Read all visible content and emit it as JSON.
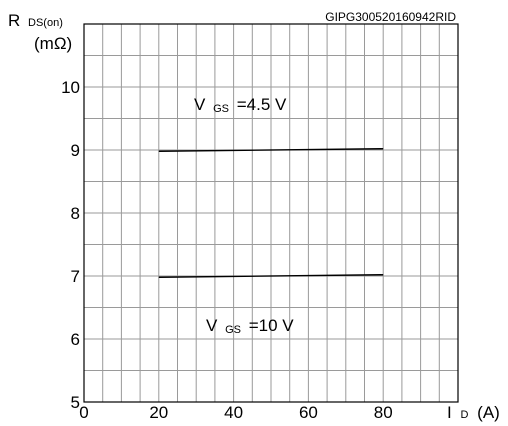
{
  "chart_data": {
    "type": "line",
    "reference_id": "GIPG300520160942RID",
    "y_label_main": "R",
    "y_label_sub": "DS(on)",
    "y_unit": "(mΩ)",
    "x_label_main": "I",
    "x_label_sub": "D",
    "x_unit": "(A)",
    "xlim": [
      0,
      100
    ],
    "ylim": [
      5,
      11
    ],
    "x_ticks": [
      0,
      20,
      40,
      60,
      80
    ],
    "y_ticks": [
      5,
      6,
      7,
      8,
      9,
      10
    ],
    "grid": true,
    "series": [
      {
        "name_main": "V",
        "name_sub": "GS",
        "name_value": "=4.5 V",
        "x": [
          20,
          80
        ],
        "y": [
          8.98,
          9.02
        ]
      },
      {
        "name_main": "V",
        "name_sub": "GS",
        "name_value": "=10 V",
        "x": [
          20,
          80
        ],
        "y": [
          6.98,
          7.02
        ]
      }
    ]
  }
}
